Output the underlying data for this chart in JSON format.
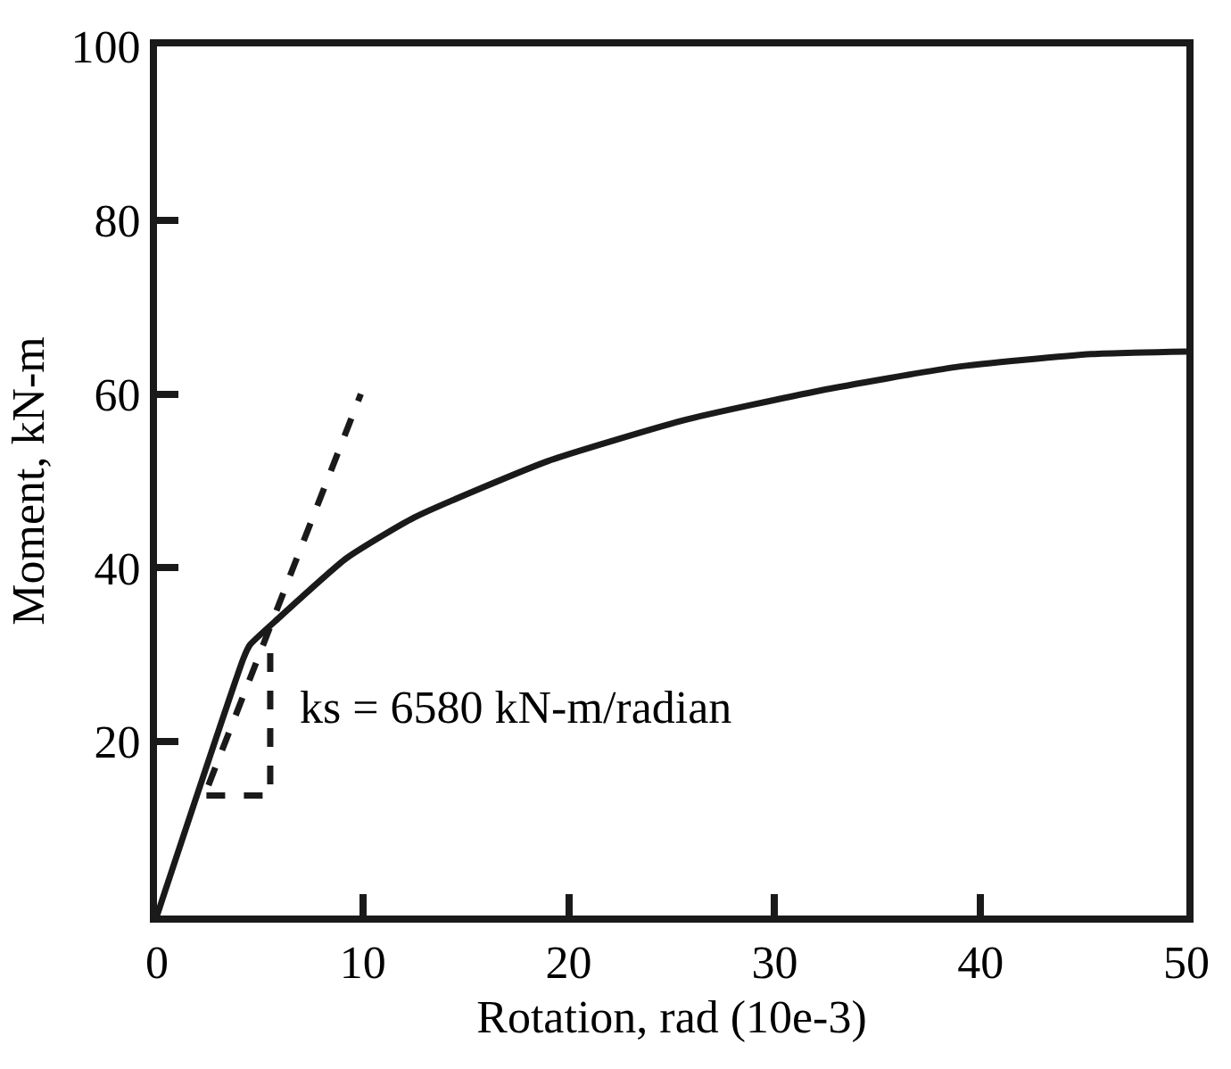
{
  "chart_data": {
    "type": "line",
    "xlabel": "Rotation, rad (10e-3)",
    "ylabel": "Moment, kN-m",
    "series": [
      {
        "color": "#1a1a1a",
        "line_style": "solid",
        "x": [
          0,
          4.2,
          4.5,
          5.9,
          9.2,
          12.5,
          19.0,
          25.6,
          32.2,
          38.8,
          45.4,
          50
        ],
        "values": [
          0,
          29.6,
          31.1,
          34.2,
          41.1,
          45.8,
          52.3,
          57.0,
          60.4,
          63.1,
          64.6,
          64.9
        ]
      },
      {
        "color": "#1a1a1a",
        "line_style": "dashed",
        "x": [
          2.5,
          9.9
        ],
        "values": [
          15,
          60
        ]
      },
      {
        "color": "#1a1a1a",
        "line_style": "dashed",
        "x": [
          2.4,
          5.5,
          5.5
        ],
        "values": [
          13.8,
          13.8,
          31.9
        ]
      }
    ],
    "xlim": [
      0,
      50
    ],
    "xticks": [
      0,
      10,
      20,
      30,
      40,
      50
    ],
    "ylim": [
      0,
      100
    ],
    "yticks": [
      20,
      40,
      60,
      80,
      100
    ],
    "grid": false,
    "marker": "none",
    "annotations": [
      "ks = 6580 kN-m/radian"
    ]
  }
}
